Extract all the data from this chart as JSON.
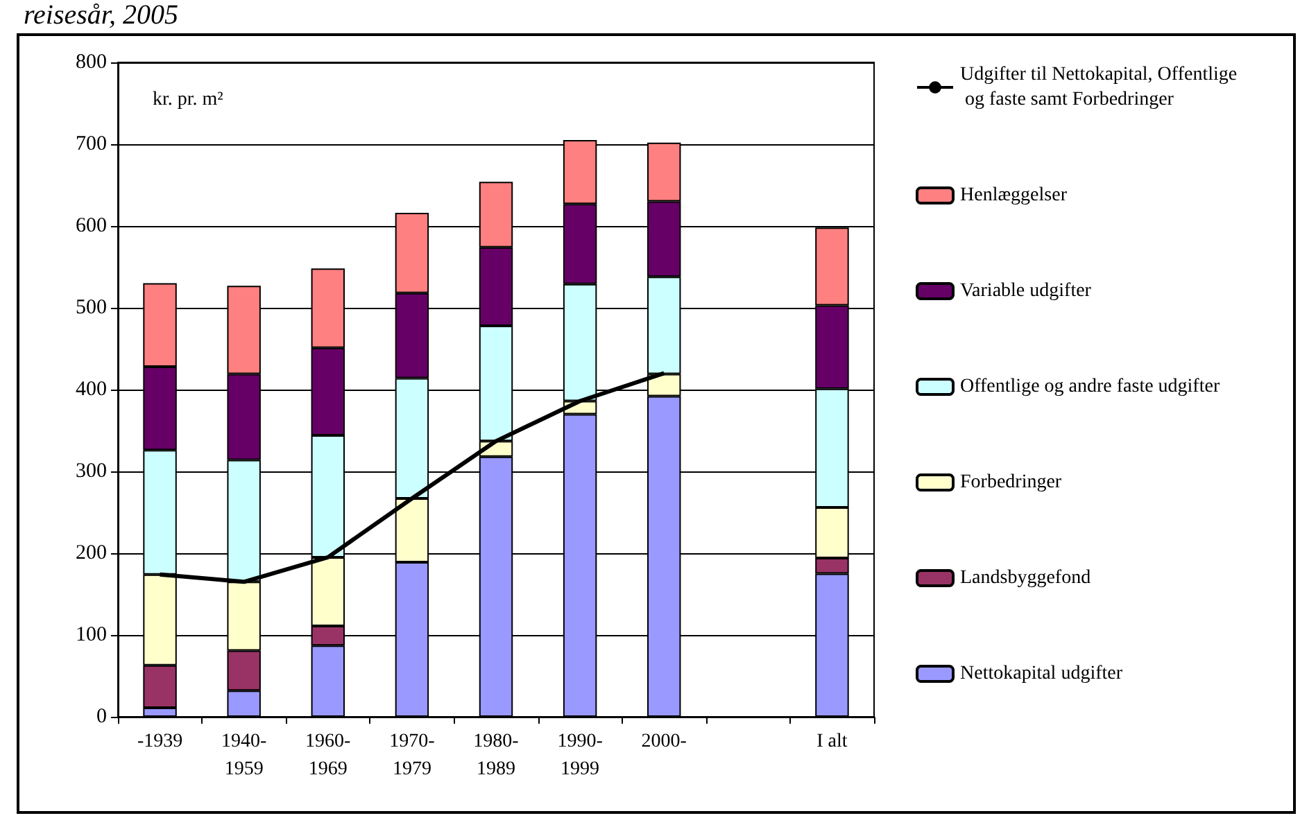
{
  "chart_data": {
    "type": "bar",
    "title": "reisesår, 2005",
    "ylabel": "kr. pr. m²",
    "stacked": true,
    "categories": [
      "-1939",
      "1940-\n1959",
      "1960-\n1969",
      "1970-\n1979",
      "1980-\n1989",
      "1990-\n1999",
      "2000-",
      null,
      "I alt"
    ],
    "series": [
      {
        "name": "Nettokapital udgifter",
        "color": "#9999ff",
        "values": [
          11,
          32,
          87,
          189,
          318,
          370,
          392,
          null,
          175
        ]
      },
      {
        "name": "Landsbyggefond",
        "color": "#993366",
        "values": [
          52,
          49,
          24,
          null,
          null,
          null,
          null,
          null,
          19
        ]
      },
      {
        "name": "Forbedringer",
        "color": "#ffffcc",
        "values": [
          111,
          84,
          84,
          78,
          19,
          16,
          27,
          null,
          62
        ]
      },
      {
        "name": "Offentlige og andre faste udgifter",
        "color": "#ccffff",
        "values": [
          152,
          149,
          149,
          147,
          141,
          143,
          119,
          null,
          145
        ]
      },
      {
        "name": "Variable udgifter",
        "color": "#660066",
        "values": [
          102,
          105,
          107,
          104,
          96,
          98,
          92,
          null,
          102
        ]
      },
      {
        "name": "Henlæggelser",
        "color": "#ff8080",
        "values": [
          102,
          108,
          97,
          98,
          80,
          78,
          72,
          null,
          95
        ]
      },
      {
        "name": "Udgifter til Nettokapital, Offentlige og faste samt Forbedringer",
        "type": "line",
        "color": "#000000",
        "marker": "none",
        "values": [
          174,
          165,
          195,
          267,
          337,
          386,
          420,
          null,
          null
        ]
      }
    ],
    "ylim": [
      0,
      800
    ],
    "yticks": [
      0,
      100,
      200,
      300,
      400,
      500,
      600,
      700,
      800
    ],
    "grid": "y",
    "legend": "right"
  }
}
